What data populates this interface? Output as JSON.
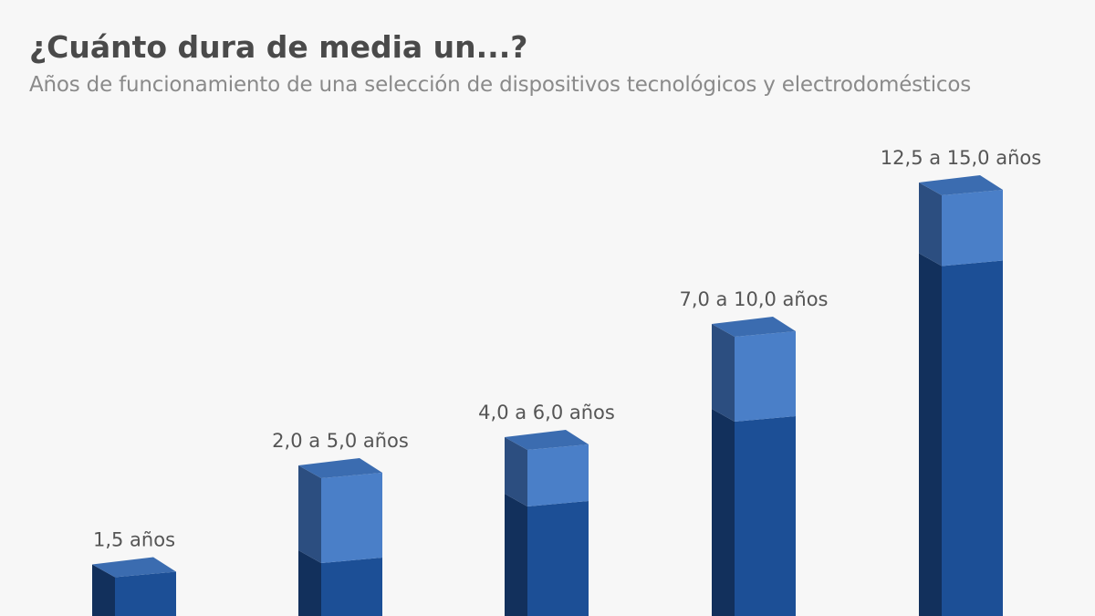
{
  "chart_data": {
    "type": "bar",
    "style": "3d-stacked-range",
    "title": "¿Cuánto dura de media un...?",
    "subtitle": "Años de funcionamiento de una selección de dispositivos tecnológicos y electrodomésticos",
    "unit": "años",
    "bars": [
      {
        "low": 1.5,
        "high": null,
        "label": "1,5 años"
      },
      {
        "low": 2.0,
        "high": 5.0,
        "label": "2,0 a 5,0 años"
      },
      {
        "low": 4.0,
        "high": 6.0,
        "label": "4,0 a 6,0 años"
      },
      {
        "low": 7.0,
        "high": 10.0,
        "label": "7,0 a 10,0 años"
      },
      {
        "low": 12.5,
        "high": 15.0,
        "label": "12,5 a 15,0 años"
      }
    ],
    "colors": {
      "background": "#f7f7f7",
      "low_front": "#1c4f96",
      "low_side": "#12305c",
      "high_front": "#4a7fc8",
      "high_side": "#2c4e80",
      "top": "#3b6cb0"
    },
    "grid": false,
    "legend": "none"
  }
}
